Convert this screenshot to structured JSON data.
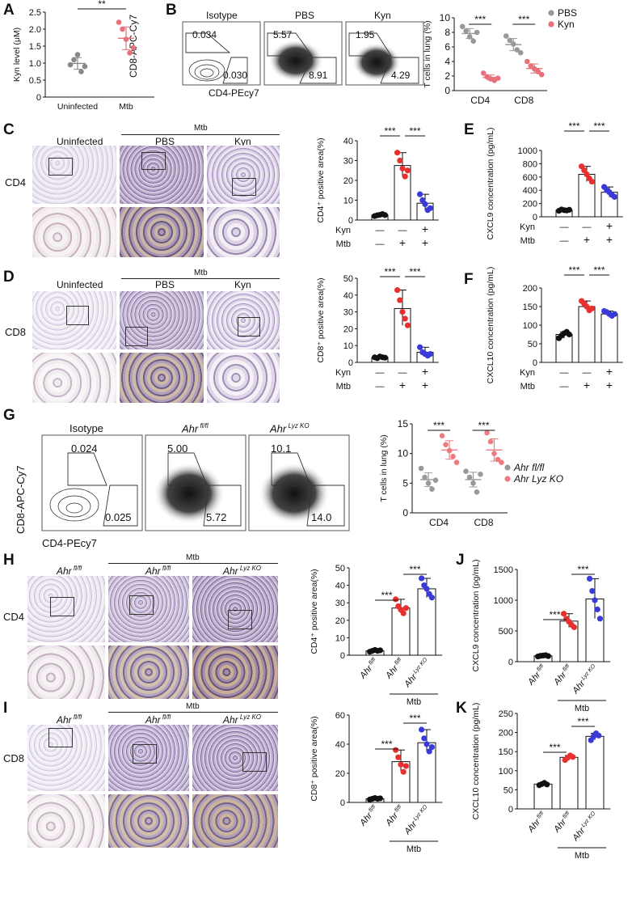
{
  "panels": {
    "A": "A",
    "B": "B",
    "C": "C",
    "D": "D",
    "E": "E",
    "F": "F",
    "G": "G",
    "H": "H",
    "I": "I",
    "J": "J",
    "K": "K"
  },
  "common": {
    "mtb": "Mtb",
    "uninfected": "Uninfected",
    "pbs": "PBS",
    "kyn": "Kyn",
    "isotype": "Isotype",
    "cd4": "CD4",
    "cd8": "CD8",
    "ahr": "Ahr",
    "flfl": " fl/fl",
    "lyzko": " Lyz KO",
    "minus": "—",
    "plus": "+",
    "sig3": "***",
    "sig2": "**"
  },
  "flow": {
    "y_axis": "CD8-APC-Cy7",
    "x_axis": "CD4-PEcy7",
    "B_titles": [
      "Isotype",
      "PBS",
      "Kyn"
    ],
    "B_values": [
      {
        "cd8": "0.034",
        "cd4": "0.030"
      },
      {
        "cd8": "5.57",
        "cd4": "8.91"
      },
      {
        "cd8": "1.95",
        "cd4": "4.29"
      }
    ],
    "G_values": [
      {
        "cd8": "0.024",
        "cd4": "0.025"
      },
      {
        "cd8": "5.00",
        "cd4": "5.72"
      },
      {
        "cd8": "10.1",
        "cd4": "14.0"
      }
    ]
  },
  "ihc": {
    "C_titles": [
      "Uninfected",
      "PBS",
      "Kyn"
    ],
    "D_titles": [
      "Uninfected",
      "PBS",
      "Kyn"
    ],
    "row_label_C": "CD4",
    "row_label_D": "CD8",
    "row_label_H": "CD4",
    "row_label_I": "CD8"
  },
  "chart_data": [
    {
      "id": "A",
      "type": "scatter",
      "ylabel": "Kyn level (μM)",
      "ylim": [
        0,
        2.5
      ],
      "yticks": [
        "0",
        "0.5",
        "1.0",
        "1.5",
        "2.0",
        "2.5"
      ],
      "categories": [
        "Uninfected",
        "Mtb"
      ],
      "series": [
        {
          "name": "Uninfected",
          "color": "#888888",
          "values": [
            0.95,
            1.1,
            1.25,
            0.75,
            0.9
          ]
        },
        {
          "name": "Mtb",
          "color": "#e8707a",
          "values": [
            2.2,
            2.0,
            1.7,
            1.3,
            1.45
          ]
        }
      ],
      "significance": "**"
    },
    {
      "id": "B",
      "type": "scatter",
      "ylabel": "T cells in lung (%)",
      "ylim": [
        0,
        10
      ],
      "yticks": [
        "0",
        "2",
        "4",
        "6",
        "8",
        "10"
      ],
      "categories": [
        "CD4",
        "CD8"
      ],
      "legend": [
        "PBS",
        "Kyn"
      ],
      "series": [
        {
          "name": "PBS",
          "color": "#999999",
          "values": [
            [
              8.8,
              8.2,
              7.4,
              6.8,
              8.0
            ],
            [
              7.5,
              6.9,
              6.4,
              5.6,
              5.2
            ]
          ]
        },
        {
          "name": "Kyn",
          "color": "#e8707a",
          "values": [
            [
              2.4,
              1.9,
              1.6,
              1.4,
              1.7
            ],
            [
              4.0,
              3.4,
              3.0,
              2.6,
              2.2
            ]
          ]
        }
      ],
      "significance": [
        "***",
        "***"
      ]
    },
    {
      "id": "C",
      "type": "bar",
      "ylabel": "CD4⁺ positive area(%)",
      "ylim": [
        0,
        40
      ],
      "yticks": [
        "0",
        "10",
        "20",
        "30",
        "40"
      ],
      "values": [
        2.5,
        27.5,
        8.5
      ],
      "points": [
        [
          2,
          2.4,
          2.6,
          3,
          2.5
        ],
        [
          34,
          30,
          26,
          22,
          25
        ],
        [
          13,
          10,
          8,
          5,
          6
        ]
      ],
      "colors": [
        "#111111",
        "#e8312f",
        "#3a3ad8"
      ],
      "rows": [
        {
          "label": "Kyn",
          "marks": [
            "—",
            "—",
            "+"
          ]
        },
        {
          "label": "Mtb",
          "marks": [
            "—",
            "+",
            "+"
          ]
        }
      ],
      "significance": [
        "***",
        "***"
      ]
    },
    {
      "id": "D",
      "type": "bar",
      "ylabel": "CD8⁺ positive area(%)",
      "ylim": [
        0,
        50
      ],
      "yticks": [
        "0",
        "10",
        "20",
        "30",
        "40",
        "50"
      ],
      "values": [
        3,
        32,
        6
      ],
      "points": [
        [
          3,
          2.5,
          3.5,
          3,
          2.8
        ],
        [
          43,
          37,
          30,
          26,
          22
        ],
        [
          9,
          6,
          5,
          4,
          5
        ]
      ],
      "colors": [
        "#111111",
        "#e8312f",
        "#3a3ad8"
      ],
      "rows": [
        {
          "label": "Kyn",
          "marks": [
            "—",
            "—",
            "+"
          ]
        },
        {
          "label": "Mtb",
          "marks": [
            "—",
            "+",
            "+"
          ]
        }
      ],
      "significance": [
        "***",
        "***"
      ]
    },
    {
      "id": "E",
      "type": "bar",
      "ylabel": "CXCL9 concentration (pg/mL)",
      "ylim": [
        0,
        1000
      ],
      "yticks": [
        "0",
        "200",
        "400",
        "600",
        "800",
        "1000"
      ],
      "values": [
        100,
        640,
        370
      ],
      "points": [
        [
          90,
          110,
          100,
          95,
          105
        ],
        [
          760,
          700,
          640,
          580,
          530
        ],
        [
          450,
          400,
          370,
          330,
          300
        ]
      ],
      "colors": [
        "#111111",
        "#e8312f",
        "#3a3ad8"
      ],
      "rows": [
        {
          "label": "Kyn",
          "marks": [
            "—",
            "—",
            "+"
          ]
        },
        {
          "label": "Mtb",
          "marks": [
            "—",
            "+",
            "+"
          ]
        }
      ],
      "significance": [
        "***",
        "***"
      ]
    },
    {
      "id": "F",
      "type": "bar",
      "ylabel": "CXCL10 concentration (pg/mL)",
      "ylim": [
        0,
        200
      ],
      "yticks": [
        "0",
        "50",
        "100",
        "150",
        "200"
      ],
      "values": [
        75,
        150,
        130
      ],
      "points": [
        [
          65,
          72,
          78,
          82,
          75
        ],
        [
          165,
          158,
          150,
          140,
          145
        ],
        [
          138,
          135,
          130,
          125,
          130
        ]
      ],
      "colors": [
        "#111111",
        "#e8312f",
        "#3a3ad8"
      ],
      "rows": [
        {
          "label": "Kyn",
          "marks": [
            "—",
            "—",
            "+"
          ]
        },
        {
          "label": "Mtb",
          "marks": [
            "—",
            "+",
            "+"
          ]
        }
      ],
      "significance": [
        "***",
        "***"
      ]
    },
    {
      "id": "G",
      "type": "scatter",
      "ylabel": "T cells in lung (%)",
      "ylim": [
        0,
        15
      ],
      "yticks": [
        "0",
        "5",
        "10",
        "15"
      ],
      "categories": [
        "CD4",
        "CD8"
      ],
      "legend": [
        "Ahr fl/fl",
        "Ahr Lyz KO"
      ],
      "series": [
        {
          "name": "Ahr fl/fl",
          "color": "#999999",
          "values": [
            [
              7.5,
              6.0,
              5.0,
              4.0,
              5.5
            ],
            [
              7.0,
              6.0,
              5.0,
              3.5,
              6.5
            ]
          ]
        },
        {
          "name": "Ahr Lyz KO",
          "color": "#ef7b82",
          "values": [
            [
              13.0,
              11.5,
              10.5,
              9.5,
              8.5
            ],
            [
              13.5,
              12.0,
              10.0,
              9.0,
              8.5
            ]
          ]
        }
      ],
      "significance": [
        "***",
        "***"
      ]
    },
    {
      "id": "H",
      "type": "bar",
      "ylabel": "CD4⁺ positive area(%)",
      "ylim": [
        0,
        50
      ],
      "yticks": [
        "0",
        "10",
        "20",
        "30",
        "40",
        "50"
      ],
      "values": [
        2.5,
        27,
        38
      ],
      "points": [
        [
          2,
          2.5,
          3,
          2.5,
          2.8
        ],
        [
          32,
          28,
          26,
          24,
          27
        ],
        [
          44,
          40,
          38,
          35,
          33
        ]
      ],
      "colors": [
        "#111111",
        "#e8312f",
        "#3a3ad8"
      ],
      "significance": [
        "***",
        "***"
      ]
    },
    {
      "id": "I",
      "type": "bar",
      "ylabel": "CD8⁺ positive area(%)",
      "ylim": [
        0,
        60
      ],
      "yticks": [
        "0",
        "20",
        "40",
        "60"
      ],
      "values": [
        2.5,
        28,
        41
      ],
      "points": [
        [
          2,
          2.5,
          3,
          2.5,
          2.8
        ],
        [
          36,
          31,
          26,
          21,
          25
        ],
        [
          50,
          44,
          40,
          35,
          38
        ]
      ],
      "colors": [
        "#111111",
        "#e8312f",
        "#3a3ad8"
      ],
      "significance": [
        "***",
        "***"
      ]
    },
    {
      "id": "J",
      "type": "bar",
      "ylabel": "CXCL9 concentration (pg/mL)",
      "ylim": [
        0,
        1500
      ],
      "yticks": [
        "0",
        "500",
        "1000",
        "1500"
      ],
      "values": [
        95,
        660,
        1020
      ],
      "points": [
        [
          85,
          95,
          100,
          105,
          90
        ],
        [
          780,
          700,
          650,
          600,
          560
        ],
        [
          1350,
          1150,
          1000,
          850,
          700
        ]
      ],
      "colors": [
        "#111111",
        "#e8312f",
        "#3a3ad8"
      ],
      "significance": [
        "***",
        "***"
      ]
    },
    {
      "id": "K",
      "type": "bar",
      "ylabel": "CXCL10 concentration (pg/mL)",
      "ylim": [
        0,
        250
      ],
      "yticks": [
        "0",
        "50",
        "100",
        "150",
        "200",
        "250"
      ],
      "values": [
        65,
        135,
        190
      ],
      "points": [
        [
          62,
          65,
          68,
          64
        ],
        [
          128,
          134,
          140,
          136
        ],
        [
          180,
          190,
          198,
          192
        ]
      ],
      "colors": [
        "#111111",
        "#e8312f",
        "#3a3ad8"
      ],
      "significance": [
        "***",
        "***"
      ]
    }
  ]
}
